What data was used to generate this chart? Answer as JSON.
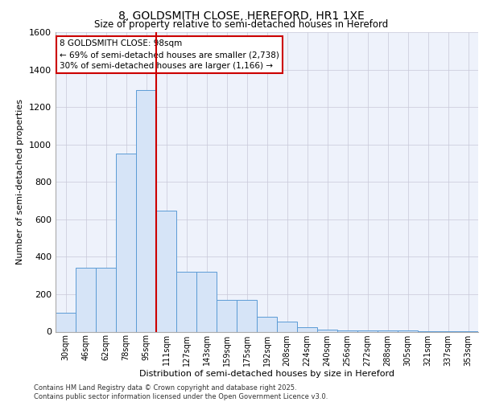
{
  "title_line1": "8, GOLDSMITH CLOSE, HEREFORD, HR1 1XE",
  "title_line2": "Size of property relative to semi-detached houses in Hereford",
  "xlabel": "Distribution of semi-detached houses by size in Hereford",
  "ylabel": "Number of semi-detached properties",
  "categories": [
    "30sqm",
    "46sqm",
    "62sqm",
    "78sqm",
    "95sqm",
    "111sqm",
    "127sqm",
    "143sqm",
    "159sqm",
    "175sqm",
    "192sqm",
    "208sqm",
    "224sqm",
    "240sqm",
    "256sqm",
    "272sqm",
    "288sqm",
    "305sqm",
    "321sqm",
    "337sqm",
    "353sqm"
  ],
  "values": [
    100,
    340,
    340,
    950,
    1290,
    645,
    320,
    320,
    170,
    170,
    80,
    55,
    25,
    10,
    8,
    5,
    5,
    5,
    3,
    2,
    2
  ],
  "bar_color": "#d6e4f7",
  "bar_edge_color": "#5b9bd5",
  "red_line_bin_index": 4,
  "annotation_title": "8 GOLDSMITH CLOSE: 98sqm",
  "annotation_line2": "← 69% of semi-detached houses are smaller (2,738)",
  "annotation_line3": "30% of semi-detached houses are larger (1,166) →",
  "annotation_box_color": "#ffffff",
  "annotation_box_edge": "#cc0000",
  "red_line_color": "#cc0000",
  "grid_color": "#c8c8d8",
  "background_color": "#eef2fb",
  "ylim": [
    0,
    1600
  ],
  "yticks": [
    0,
    200,
    400,
    600,
    800,
    1000,
    1200,
    1400,
    1600
  ],
  "footer_line1": "Contains HM Land Registry data © Crown copyright and database right 2025.",
  "footer_line2": "Contains public sector information licensed under the Open Government Licence v3.0."
}
